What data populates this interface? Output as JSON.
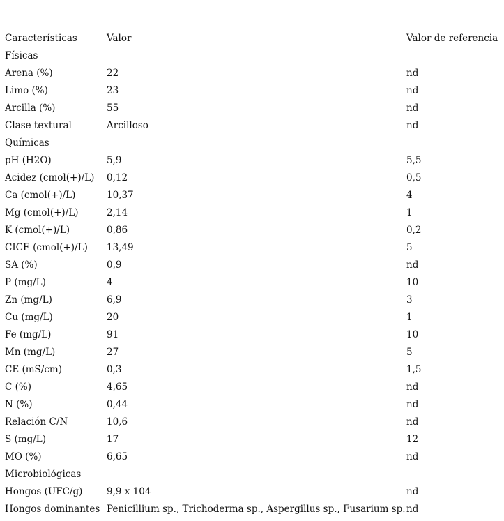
{
  "header": {
    "col1": "Características",
    "col2": "Valor",
    "col3": "Valor de referencia"
  },
  "rows": [
    {
      "c1": "Físicas",
      "c2": "",
      "c3": ""
    },
    {
      "c1": "Arena (%)",
      "c2": "22",
      "c3": "nd"
    },
    {
      "c1": "Limo (%)",
      "c2": "23",
      "c3": "nd"
    },
    {
      "c1": "Arcilla (%)",
      "c2": "55",
      "c3": "nd"
    },
    {
      "c1": "Clase textural",
      "c2": "Arcilloso",
      "c3": "nd"
    },
    {
      "c1": "Químicas",
      "c2": "",
      "c3": ""
    },
    {
      "c1": "pH (H2O)",
      "c2": "5,9",
      "c3": "5,5"
    },
    {
      "c1": "Acidez (cmol(+)/L)",
      "c2": "0,12",
      "c3": "0,5"
    },
    {
      "c1": "Ca (cmol(+)/L)",
      "c2": "10,37",
      "c3": "4"
    },
    {
      "c1": "Mg (cmol(+)/L)",
      "c2": "2,14",
      "c3": "1"
    },
    {
      "c1": "K (cmol(+)/L)",
      "c2": "0,86",
      "c3": "0,2"
    },
    {
      "c1": "CICE (cmol(+)/L)",
      "c2": "13,49",
      "c3": "5"
    },
    {
      "c1": "SA (%)",
      "c2": "0,9",
      "c3": "nd"
    },
    {
      "c1": "P (mg/L)",
      "c2": "4",
      "c3": "10"
    },
    {
      "c1": "Zn (mg/L)",
      "c2": "6,9",
      "c3": "3"
    },
    {
      "c1": "Cu (mg/L)",
      "c2": "20",
      "c3": "1"
    },
    {
      "c1": "Fe (mg/L)",
      "c2": "91",
      "c3": "10"
    },
    {
      "c1": "Mn (mg/L)",
      "c2": "27",
      "c3": "5"
    },
    {
      "c1": "CE (mS/cm)",
      "c2": "0,3",
      "c3": "1,5"
    },
    {
      "c1": "C (%)",
      "c2": "4,65",
      "c3": "nd"
    },
    {
      "c1": "N (%)",
      "c2": "0,44",
      "c3": "nd"
    },
    {
      "c1": "Relación C/N",
      "c2": "10,6",
      "c3": "nd"
    },
    {
      "c1": "S (mg/L)",
      "c2": "17",
      "c3": "12"
    },
    {
      "c1": "MO (%)",
      "c2": "6,65",
      "c3": "nd"
    },
    {
      "c1": "Microbiológicas",
      "c2": "",
      "c3": ""
    },
    {
      "c1": "Hongos (UFC/g)",
      "c2": "9,9 x 104",
      "c3": "nd"
    },
    {
      "c1": "Hongos dominantes",
      "c2": "Penicillium sp., Trichoderma sp., Aspergillus sp., Fusarium sp.",
      "c3": "nd"
    }
  ]
}
